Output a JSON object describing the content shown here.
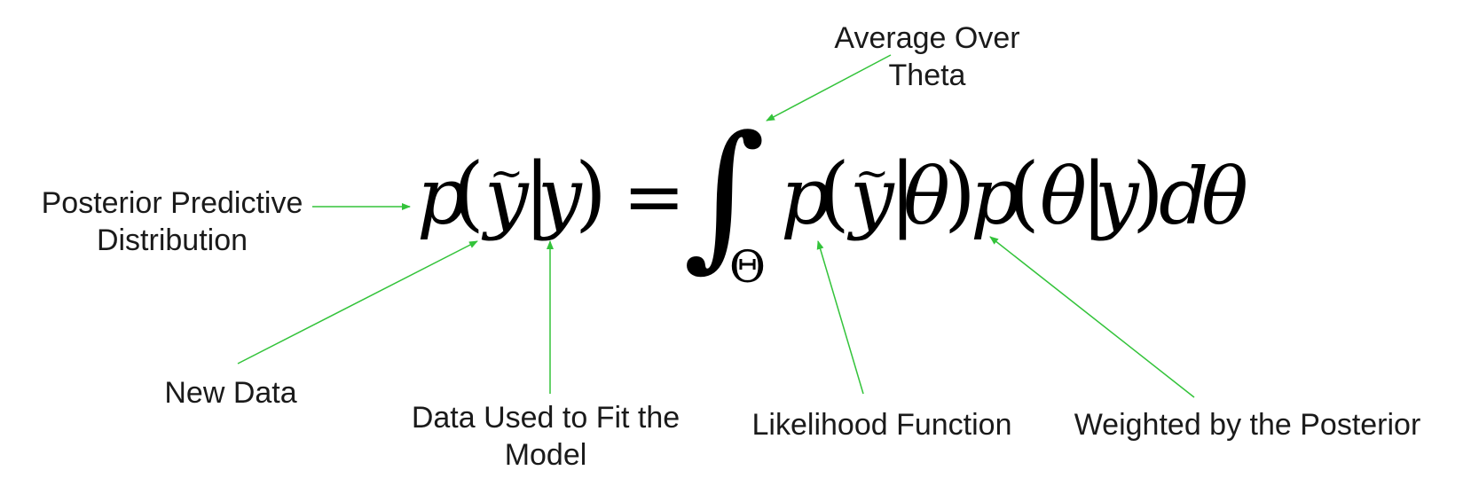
{
  "equation": {
    "lhs": {
      "p": "p",
      "open": "(",
      "ytilde": "y",
      "tilde": "~",
      "bar": "|",
      "y": "y",
      "close": ")"
    },
    "equals": "=",
    "integral": "∫",
    "domain": "Θ",
    "rhs": {
      "p1": "p",
      "open1": "(",
      "ytilde": "y",
      "tilde": "~",
      "bar1": "|",
      "theta1": "θ",
      "close1": ")",
      "p2": "p",
      "open2": "(",
      "theta2": "θ",
      "bar2": "|",
      "y": "y",
      "close2": ")",
      "d": "d",
      "theta3": "θ"
    }
  },
  "annotations": {
    "posterior_predictive": [
      "Posterior Predictive",
      "Distribution"
    ],
    "new_data": "New Data",
    "data_used": [
      "Data Used to Fit the",
      "Model"
    ],
    "average_over": [
      "Average Over",
      "Theta"
    ],
    "likelihood": "Likelihood Function",
    "weighted": "Weighted by the Posterior"
  },
  "colors": {
    "arrow": "#33c33a",
    "text": "#1a1a1a",
    "equation": "#000000"
  }
}
